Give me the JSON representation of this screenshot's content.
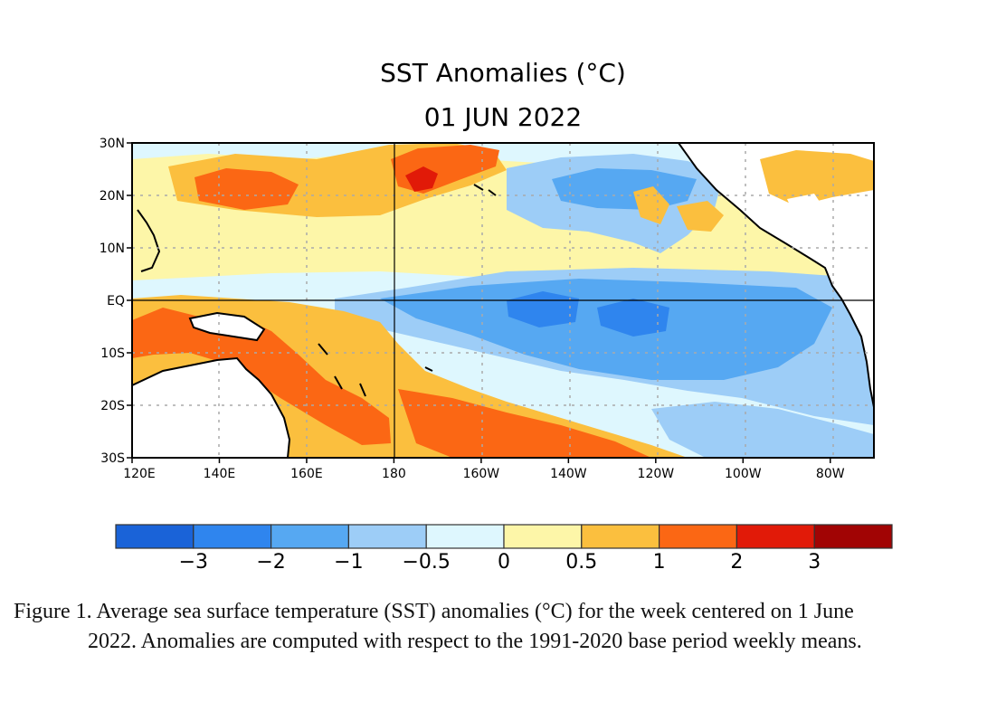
{
  "title": "SST Anomalies (°C)",
  "date": "01 JUN 2022",
  "map": {
    "lat_labels": [
      "30N",
      "20N",
      "10N",
      "EQ",
      "10S",
      "20S",
      "30S"
    ],
    "lon_labels": [
      "120E",
      "140E",
      "160E",
      "180",
      "160W",
      "140W",
      "120W",
      "100W",
      "80W"
    ],
    "lat_range": [
      "30S",
      "30N"
    ],
    "lon_range": [
      "120E",
      "70W"
    ],
    "regions": [
      {
        "name": "equatorial-central-east-pacific",
        "level": "-1 to -0.5"
      },
      {
        "name": "west-pacific-near-australia",
        "level": "1 to 2"
      },
      {
        "name": "north-central-pacific",
        "level": "1 to 2"
      },
      {
        "name": "south-central-pacific",
        "level": "1 to 2"
      },
      {
        "name": "north-subtropical-pacific",
        "level": "0 to 0.5"
      }
    ]
  },
  "colorbar": {
    "colors": [
      "#1a63d8",
      "#2f85ee",
      "#56a8f2",
      "#9dcdf7",
      "#def7fe",
      "#fdf6a8",
      "#fbbf3e",
      "#fb6714",
      "#e11a08",
      "#a10404"
    ],
    "tick_labels": [
      "−3",
      "−2",
      "−1",
      "−0.5",
      "0",
      "0.5",
      "1",
      "2",
      "3"
    ]
  },
  "caption": {
    "line1": "Figure 1. Average sea surface temperature (SST) anomalies (°C) for the week centered on 1 June",
    "line2": "2022.  Anomalies are computed with respect to the 1991-2020 base period weekly means."
  }
}
